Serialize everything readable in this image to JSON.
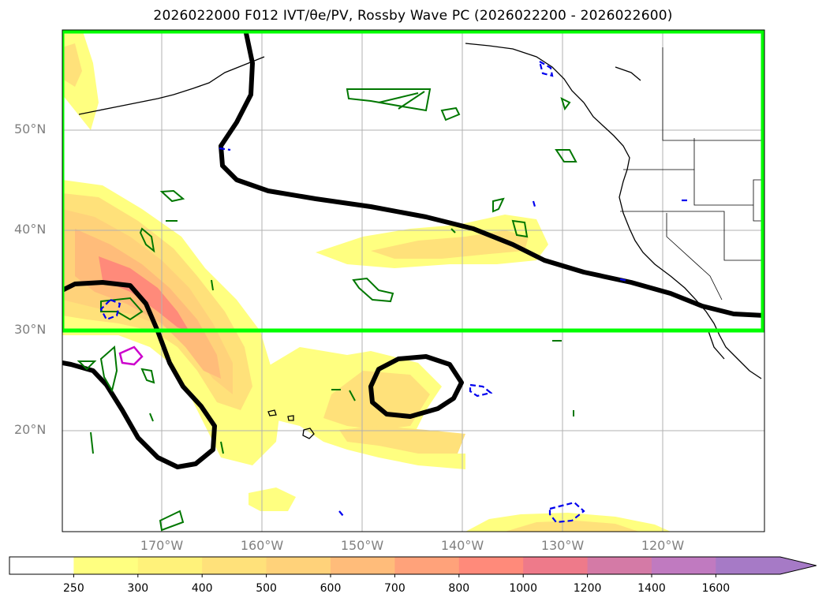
{
  "title": "2026022000 F012 IVT/θe/PV, Rossby Wave PC (2026022200 - 2026022600)",
  "map": {
    "lat_labels": [
      "50°N",
      "40°N",
      "30°N",
      "20°N"
    ],
    "lon_labels": [
      "170°W",
      "160°W",
      "150°W",
      "140°W",
      "130°W",
      "120°W"
    ],
    "colors": {
      "box": "#00ff00",
      "rossby_contour": "#000000",
      "theta_contour": "#007700",
      "pv_contour": "#0000ee",
      "magenta_contour": "#cc00cc",
      "coast": "#000000",
      "grid": "#b0b0b0"
    }
  },
  "colorbar": {
    "levels": [
      "250",
      "300",
      "400",
      "500",
      "600",
      "700",
      "800",
      "1000",
      "1200",
      "1400",
      "1600"
    ],
    "colors": [
      "#ffffff",
      "#ffff80",
      "#fff27a",
      "#ffe17a",
      "#ffd27a",
      "#ffbc7a",
      "#ffa27a",
      "#ff8a7a",
      "#ee7a8a",
      "#d47aa6",
      "#c07ac0",
      "#a67ac6"
    ]
  }
}
